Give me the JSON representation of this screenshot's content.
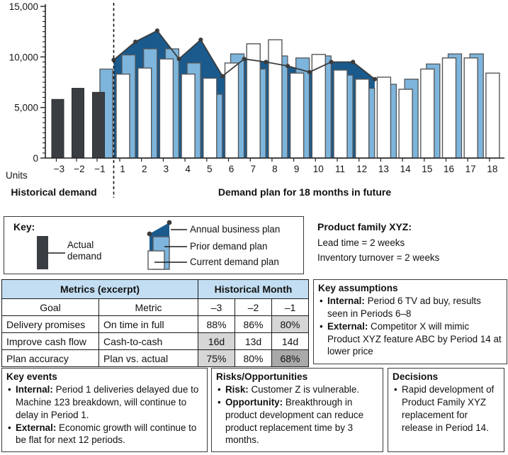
{
  "chart": {
    "units_label": "Units",
    "historical_title": "Historical demand",
    "future_title": "Demand plan for 18 months in future"
  },
  "chart_data": {
    "type": "combo",
    "ylabel": "Units",
    "ylim": [
      0,
      15000
    ],
    "y_ticks": [
      {
        "v": 0,
        "label": "0"
      },
      {
        "v": 5000,
        "label": "5,000"
      },
      {
        "v": 10000,
        "label": "10,000"
      },
      {
        "v": 15000,
        "label": "15,000"
      }
    ],
    "y_minor_step": 500,
    "historical": {
      "categories": [
        "−3",
        "−2",
        "−1"
      ],
      "series": [
        {
          "name": "Actual demand",
          "type": "bar",
          "values": [
            5800,
            6900,
            6500
          ]
        },
        {
          "name": "Prior demand plan",
          "type": "bar",
          "values": [
            null,
            null,
            8800
          ]
        }
      ]
    },
    "future": {
      "categories": [
        "1",
        "2",
        "3",
        "4",
        "5",
        "6",
        "7",
        "8",
        "9",
        "10",
        "11",
        "12",
        "13",
        "14",
        "15",
        "16",
        "17",
        "18"
      ],
      "series": [
        {
          "name": "Prior demand plan",
          "type": "bar",
          "values": [
            10200,
            10800,
            10800,
            9400,
            6300,
            10300,
            8800,
            10100,
            9900,
            10100,
            8200,
            6900,
            7300,
            7800,
            9300,
            10300,
            10300,
            null
          ]
        },
        {
          "name": "Current demand plan",
          "type": "bar",
          "values": [
            8300,
            8900,
            9800,
            8300,
            7900,
            9400,
            11300,
            11700,
            8400,
            10250,
            8700,
            7800,
            8000,
            6800,
            8800,
            9900,
            9900,
            8400
          ]
        },
        {
          "name": "Annual business plan",
          "type": "line-area",
          "note": "dots at period boundaries 0 through 12; area filled to axis",
          "boundary_values": [
            9700,
            11500,
            12600,
            9800,
            11700,
            8100,
            9800,
            9500,
            9100,
            8500,
            9500,
            9500,
            7800
          ]
        }
      ]
    },
    "divider": "dashed vertical line between historical and future"
  },
  "key": {
    "title": "Key:",
    "items": [
      {
        "label": "Actual demand",
        "swatch": "dark-bar"
      },
      {
        "label": "Annual business plan",
        "swatch": "dark-blue-area"
      },
      {
        "label": "Prior demand plan",
        "swatch": "light-blue-bar"
      },
      {
        "label": "Current demand plan",
        "swatch": "white-bar"
      }
    ]
  },
  "product_family": {
    "title": "Product family XYZ:",
    "lines": [
      "Lead time = 2 weeks",
      "Inventory turnover = 2 weeks"
    ]
  },
  "metrics_table": {
    "header_left": "Metrics (excerpt)",
    "header_right": "Historical Month",
    "col_headers": [
      "Goal",
      "Metric",
      "–3",
      "–2",
      "–1"
    ],
    "rows": [
      {
        "goal": "Delivery promises",
        "metric": "On time in full",
        "values": [
          {
            "text": "88%",
            "shade": "none"
          },
          {
            "text": "86%",
            "shade": "none"
          },
          {
            "text": "80%",
            "shade": "light"
          }
        ]
      },
      {
        "goal": "Improve cash flow",
        "metric": "Cash-to-cash",
        "values": [
          {
            "text": "16d",
            "shade": "light"
          },
          {
            "text": "13d",
            "shade": "none"
          },
          {
            "text": "14d",
            "shade": "none"
          }
        ]
      },
      {
        "goal": "Plan accuracy",
        "metric": "Plan vs. actual",
        "values": [
          {
            "text": "75%",
            "shade": "light"
          },
          {
            "text": "80%",
            "shade": "none"
          },
          {
            "text": "68%",
            "shade": "dark"
          }
        ]
      }
    ]
  },
  "key_assumptions": {
    "title": "Key assumptions",
    "items": [
      {
        "label": "Internal:",
        "text": "Period 6 TV ad buy, results seen in Periods 6–8"
      },
      {
        "label": "External:",
        "text": "Competitor X will mimic Product XYZ feature ABC by Period 14 at lower price"
      }
    ]
  },
  "key_events": {
    "title": "Key events",
    "items": [
      {
        "label": "Internal:",
        "text": "Period 1 deliveries delayed due to Machine 123 breakdown, will continue to delay in Period 1."
      },
      {
        "label": "External:",
        "text": "Economic growth will continue to be flat for next 12 periods."
      }
    ]
  },
  "risks_opportunities": {
    "title": "Risks/Opportunities",
    "items": [
      {
        "label": "Risk:",
        "text": "Customer Z is vulnerable."
      },
      {
        "label": "Opportunity:",
        "text": "Breakthrough in product development can reduce product replacement time by 3 months."
      }
    ]
  },
  "decisions": {
    "title": "Decisions",
    "items": [
      {
        "label": "",
        "text": "Rapid development of Product Family XYZ replacement for release in Period 14."
      }
    ]
  },
  "colors": {
    "actual_bar": "#3a3d42",
    "actual_bar_stroke": "#2b2e31",
    "prior_bar": "#7db5dc",
    "current_bar": "#ffffff",
    "bar_stroke": "#55575b",
    "abp_fill": "#1a5a8c",
    "abp_line": "#3c3c3c",
    "axis": "#222222",
    "table_header_bg": "#c3def2",
    "cell_light": "#d6d6d6",
    "cell_dark": "#a9a9a9"
  }
}
